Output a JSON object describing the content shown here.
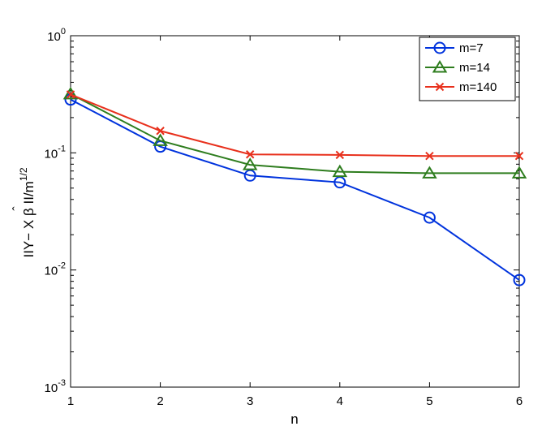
{
  "chart_data": {
    "type": "line",
    "title": "",
    "xlabel": "n",
    "ylabel": "IIY− X β II/m",
    "ylabel_hat": "ˆ",
    "ylabel_exp": "1/2",
    "x": [
      1,
      2,
      3,
      4,
      5,
      6
    ],
    "xlim": [
      1,
      6
    ],
    "ylim": [
      0.001,
      1
    ],
    "yscale": "log",
    "grid": false,
    "legend_position": "top-right",
    "xticks": [
      "1",
      "2",
      "3",
      "4",
      "5",
      "6"
    ],
    "yticks": [
      {
        "value": 1,
        "base": "10",
        "exp": "0"
      },
      {
        "value": 0.1,
        "base": "10",
        "exp": "-1"
      },
      {
        "value": 0.01,
        "base": "10",
        "exp": "-2"
      },
      {
        "value": 0.001,
        "base": "10",
        "exp": "-3"
      }
    ],
    "series": [
      {
        "name": "m=7",
        "color": "#0033dd",
        "marker": "circle",
        "values": [
          0.285,
          0.113,
          0.064,
          0.056,
          0.028,
          0.0082
        ]
      },
      {
        "name": "m=14",
        "color": "#2e7d1e",
        "marker": "triangle",
        "values": [
          0.318,
          0.127,
          0.079,
          0.069,
          0.067,
          0.067
        ]
      },
      {
        "name": "m=140",
        "color": "#e8301c",
        "marker": "x",
        "values": [
          0.315,
          0.154,
          0.097,
          0.096,
          0.094,
          0.094
        ]
      }
    ]
  }
}
